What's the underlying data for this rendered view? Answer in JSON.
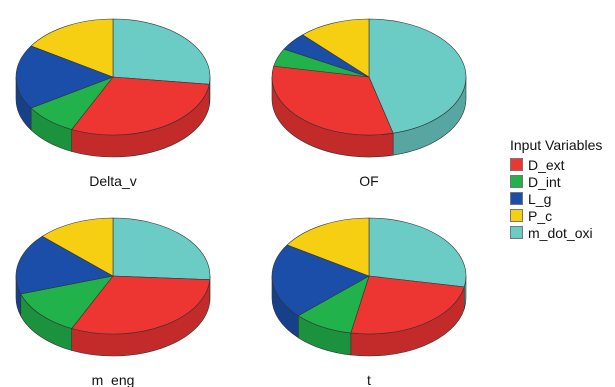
{
  "chart_data": {
    "type": "pie",
    "style": "3d",
    "legend": {
      "title": "Input Variables",
      "position": "right",
      "entries": [
        {
          "name": "D_ext",
          "color": "#ed3532"
        },
        {
          "name": "D_int",
          "color": "#22b24c"
        },
        {
          "name": "L_g",
          "color": "#1b4ea8"
        },
        {
          "name": "P_c",
          "color": "#f7cf12"
        },
        {
          "name": "m_dot_oxi",
          "color": "#6bcbc5"
        }
      ]
    },
    "charts": [
      {
        "title": "Delta_v",
        "slices": [
          {
            "label": "m_dot_oxi",
            "value": 0.27
          },
          {
            "label": "D_ext",
            "value": 0.3
          },
          {
            "label": "D_int",
            "value": 0.09
          },
          {
            "label": "L_g",
            "value": 0.18
          },
          {
            "label": "P_c",
            "value": 0.16
          }
        ]
      },
      {
        "title": "OF",
        "slices": [
          {
            "label": "m_dot_oxi",
            "value": 0.46
          },
          {
            "label": "D_ext",
            "value": 0.32
          },
          {
            "label": "D_int",
            "value": 0.05
          },
          {
            "label": "L_g",
            "value": 0.05
          },
          {
            "label": "P_c",
            "value": 0.12
          }
        ]
      },
      {
        "title": "m_eng",
        "slices": [
          {
            "label": "m_dot_oxi",
            "value": 0.26
          },
          {
            "label": "D_ext",
            "value": 0.31
          },
          {
            "label": "D_int",
            "value": 0.13
          },
          {
            "label": "L_g",
            "value": 0.17
          },
          {
            "label": "P_c",
            "value": 0.13
          }
        ]
      },
      {
        "title": "t",
        "slices": [
          {
            "label": "m_dot_oxi",
            "value": 0.28
          },
          {
            "label": "D_ext",
            "value": 0.25
          },
          {
            "label": "D_int",
            "value": 0.1
          },
          {
            "label": "L_g",
            "value": 0.21
          },
          {
            "label": "P_c",
            "value": 0.16
          }
        ]
      }
    ]
  }
}
